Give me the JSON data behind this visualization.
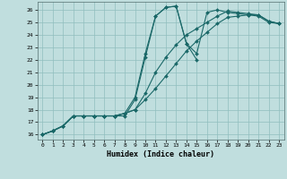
{
  "xlabel": "Humidex (Indice chaleur)",
  "background_color": "#c0dede",
  "grid_color": "#90bebe",
  "line_color": "#1a6868",
  "xlim": [
    -0.5,
    23.5
  ],
  "ylim": [
    15.6,
    26.65
  ],
  "xticks": [
    0,
    1,
    2,
    3,
    4,
    5,
    6,
    7,
    8,
    9,
    10,
    11,
    12,
    13,
    14,
    15,
    16,
    17,
    18,
    19,
    20,
    21,
    22,
    23
  ],
  "yticks": [
    16,
    17,
    18,
    19,
    20,
    21,
    22,
    23,
    24,
    25,
    26
  ],
  "lines": [
    {
      "x": [
        0,
        1,
        2,
        3,
        4,
        5,
        6,
        7,
        8,
        9,
        10,
        11,
        12,
        13,
        14,
        15
      ],
      "y": [
        16,
        16.3,
        16.7,
        17.5,
        17.5,
        17.5,
        17.5,
        17.5,
        17.5,
        18.8,
        22.2,
        25.5,
        26.2,
        26.3,
        23.3,
        22.0
      ]
    },
    {
      "x": [
        0,
        1,
        2,
        3,
        4,
        5,
        6,
        7,
        8,
        9,
        10,
        11,
        12,
        13,
        14,
        15,
        16,
        17,
        18,
        19,
        20,
        21,
        22,
        23
      ],
      "y": [
        16,
        16.3,
        16.7,
        17.5,
        17.5,
        17.5,
        17.5,
        17.5,
        17.7,
        19.0,
        22.5,
        25.5,
        26.2,
        26.3,
        23.3,
        22.5,
        25.8,
        26.0,
        25.8,
        25.7,
        25.6,
        25.6,
        25.1,
        24.9
      ]
    },
    {
      "x": [
        0,
        1,
        2,
        3,
        4,
        5,
        6,
        7,
        8,
        9,
        10,
        11,
        12,
        13,
        14,
        15,
        16,
        17,
        18,
        19,
        20,
        21,
        22,
        23
      ],
      "y": [
        16,
        16.3,
        16.7,
        17.5,
        17.5,
        17.5,
        17.5,
        17.5,
        17.7,
        18.0,
        19.3,
        21.0,
        22.2,
        23.2,
        24.0,
        24.5,
        25.0,
        25.5,
        25.9,
        25.8,
        25.7,
        25.6,
        25.1,
        24.9
      ]
    },
    {
      "x": [
        0,
        1,
        2,
        3,
        4,
        5,
        6,
        7,
        8,
        9,
        10,
        11,
        12,
        13,
        14,
        15,
        16,
        17,
        18,
        19,
        20,
        21,
        22,
        23
      ],
      "y": [
        16,
        16.3,
        16.7,
        17.5,
        17.5,
        17.5,
        17.5,
        17.5,
        17.7,
        18.0,
        18.8,
        19.7,
        20.7,
        21.7,
        22.7,
        23.5,
        24.2,
        24.9,
        25.4,
        25.5,
        25.6,
        25.5,
        25.0,
        24.9
      ]
    }
  ]
}
